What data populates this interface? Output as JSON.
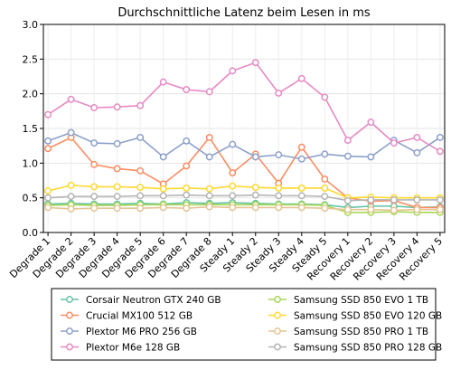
{
  "chart_data": {
    "type": "line",
    "title": "Durchschnittliche Latenz beim Lesen in ms",
    "xlabel": "",
    "ylabel": "",
    "ylim": [
      0.0,
      3.0
    ],
    "yticks": [
      "0.0",
      "0.5",
      "1.0",
      "1.5",
      "2.0",
      "2.5",
      "3.0"
    ],
    "grid": true,
    "legend_position": "bottom",
    "categories": [
      "Degrade 1",
      "Degrade 2",
      "Degrade 3",
      "Degrade 4",
      "Degrade 5",
      "Degrade 6",
      "Degrade 7",
      "Degrade 8",
      "Steady 1",
      "Steady 2",
      "Steady 3",
      "Steady 4",
      "Steady 5",
      "Recovery 1",
      "Recovery 2",
      "Recovery 3",
      "Recovery 4",
      "Recovery 5"
    ],
    "series": [
      {
        "name": "Corsair Neutron GTX 240 GB",
        "color": "#66c2a5",
        "values": [
          0.41,
          0.42,
          0.41,
          0.41,
          0.42,
          0.41,
          0.43,
          0.42,
          0.43,
          0.42,
          0.41,
          0.41,
          0.4,
          0.36,
          0.38,
          0.38,
          0.36,
          0.37
        ]
      },
      {
        "name": "Crucial MX100 512 GB",
        "color": "#fc8d62",
        "values": [
          1.21,
          1.37,
          0.98,
          0.92,
          0.89,
          0.7,
          0.96,
          1.37,
          0.86,
          1.13,
          0.71,
          1.23,
          0.77,
          0.5,
          0.45,
          0.46,
          0.36,
          0.36
        ]
      },
      {
        "name": "Plextor M6 PRO 256 GB",
        "color": "#8da0cb",
        "values": [
          1.32,
          1.44,
          1.29,
          1.28,
          1.37,
          1.09,
          1.32,
          1.09,
          1.27,
          1.09,
          1.12,
          1.06,
          1.13,
          1.1,
          1.09,
          1.33,
          1.15,
          1.37
        ]
      },
      {
        "name": "Plextor M6e 128 GB",
        "color": "#e78ac3",
        "values": [
          1.7,
          1.92,
          1.8,
          1.81,
          1.83,
          2.17,
          2.06,
          2.03,
          2.33,
          2.45,
          2.01,
          2.22,
          1.95,
          1.33,
          1.59,
          1.29,
          1.37,
          1.17
        ]
      },
      {
        "name": "Samsung SSD 850 EVO 1 TB",
        "color": "#a6d854",
        "values": [
          0.39,
          0.4,
          0.39,
          0.39,
          0.4,
          0.4,
          0.4,
          0.4,
          0.4,
          0.4,
          0.4,
          0.4,
          0.39,
          0.29,
          0.29,
          0.3,
          0.29,
          0.29
        ]
      },
      {
        "name": "Samsung SSD 850 EVO 120 GB",
        "color": "#ffd92f",
        "values": [
          0.6,
          0.68,
          0.66,
          0.66,
          0.65,
          0.63,
          0.64,
          0.63,
          0.67,
          0.65,
          0.64,
          0.64,
          0.64,
          0.5,
          0.51,
          0.5,
          0.5,
          0.5
        ]
      },
      {
        "name": "Samsung SSD 850 PRO 1 TB",
        "color": "#e5c494",
        "values": [
          0.36,
          0.34,
          0.35,
          0.35,
          0.35,
          0.36,
          0.35,
          0.37,
          0.36,
          0.36,
          0.36,
          0.36,
          0.35,
          0.33,
          0.33,
          0.32,
          0.33,
          0.33
        ]
      },
      {
        "name": "Samsung SSD 850 PRO 128 GB",
        "color": "#b3b3b3",
        "values": [
          0.5,
          0.52,
          0.52,
          0.52,
          0.53,
          0.53,
          0.54,
          0.53,
          0.53,
          0.54,
          0.53,
          0.53,
          0.52,
          0.46,
          0.47,
          0.47,
          0.47,
          0.47
        ]
      }
    ]
  }
}
